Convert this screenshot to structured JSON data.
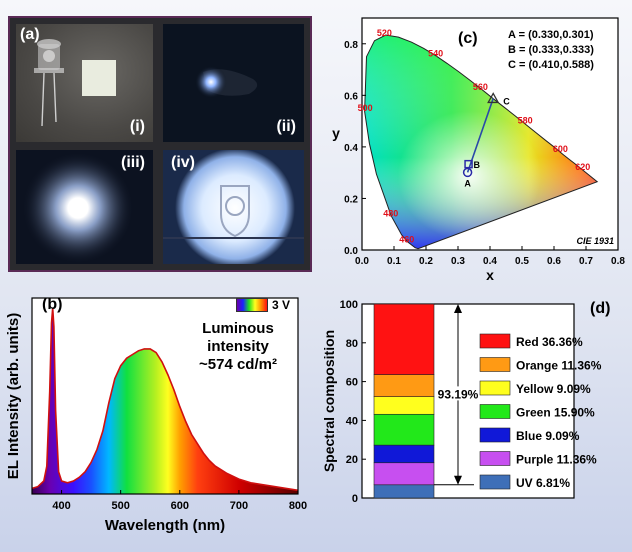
{
  "panel_a": {
    "label": "(a)",
    "subpanels": [
      {
        "label": "(i)",
        "icon": "led-and-phosphor-photo"
      },
      {
        "label": "(ii)",
        "icon": "led-off-photo"
      },
      {
        "label": "(iii)",
        "icon": "led-on-glow-photo"
      },
      {
        "label": "(iv)",
        "icon": "illuminated-emblem-photo"
      }
    ]
  },
  "chart_data": [
    {
      "type": "chromaticity",
      "panel_label": "(c)",
      "title": "CIE 1931",
      "xlabel": "x",
      "ylabel": "y",
      "xlim": [
        0.0,
        0.8
      ],
      "ylim": [
        0.0,
        0.9
      ],
      "xticks": [
        "0.0",
        "0.1",
        "0.2",
        "0.3",
        "0.4",
        "0.5",
        "0.6",
        "0.7",
        "0.8"
      ],
      "yticks": [
        "0.0",
        "0.2",
        "0.4",
        "0.6",
        "0.8"
      ],
      "wavelength_labels": [
        {
          "text": "460",
          "x": 0.14,
          "y": 0.03
        },
        {
          "text": "480",
          "x": 0.09,
          "y": 0.13
        },
        {
          "text": "500",
          "x": 0.01,
          "y": 0.54
        },
        {
          "text": "520",
          "x": 0.07,
          "y": 0.83
        },
        {
          "text": "540",
          "x": 0.23,
          "y": 0.75
        },
        {
          "text": "560",
          "x": 0.37,
          "y": 0.62
        },
        {
          "text": "580",
          "x": 0.51,
          "y": 0.49
        },
        {
          "text": "600",
          "x": 0.62,
          "y": 0.38
        },
        {
          "text": "620",
          "x": 0.69,
          "y": 0.31
        }
      ],
      "points": [
        {
          "name": "A",
          "x": 0.33,
          "y": 0.301,
          "marker": "circle"
        },
        {
          "name": "B",
          "x": 0.333,
          "y": 0.333,
          "marker": "square"
        },
        {
          "name": "C",
          "x": 0.41,
          "y": 0.588,
          "marker": "triangle"
        }
      ],
      "legend_text": [
        "A = (0.330,0.301)",
        "B = (0.333,0.333)",
        "C = (0.410,0.588)"
      ],
      "legend_position": "top-right"
    },
    {
      "type": "line",
      "panel_label": "(b)",
      "xlabel": "Wavelength (nm)",
      "ylabel": "EL Intensity (arb. units)",
      "xlim": [
        350,
        800
      ],
      "xticks": [
        "400",
        "500",
        "600",
        "700",
        "800"
      ],
      "legend": "3 V",
      "annotation": [
        "Luminous intensity",
        "~574 cd/m²"
      ],
      "x": [
        350,
        360,
        370,
        375,
        380,
        383,
        385,
        387,
        390,
        395,
        400,
        410,
        420,
        430,
        440,
        450,
        460,
        470,
        480,
        490,
        500,
        510,
        520,
        530,
        540,
        550,
        560,
        570,
        580,
        590,
        600,
        610,
        620,
        630,
        640,
        650,
        660,
        670,
        680,
        700,
        720,
        740,
        760,
        780,
        800
      ],
      "y": [
        0.03,
        0.04,
        0.07,
        0.15,
        0.55,
        0.92,
        1.0,
        0.9,
        0.45,
        0.12,
        0.07,
        0.06,
        0.07,
        0.09,
        0.12,
        0.17,
        0.24,
        0.34,
        0.49,
        0.62,
        0.69,
        0.73,
        0.75,
        0.77,
        0.78,
        0.78,
        0.76,
        0.71,
        0.64,
        0.56,
        0.47,
        0.39,
        0.32,
        0.27,
        0.22,
        0.18,
        0.15,
        0.13,
        0.11,
        0.08,
        0.06,
        0.05,
        0.04,
        0.03,
        0.02
      ]
    },
    {
      "type": "stacked_bar",
      "panel_label": "(d)",
      "ylabel": "Spectral composition",
      "ylim": [
        0,
        100
      ],
      "yticks": [
        "0",
        "20",
        "40",
        "60",
        "80",
        "100"
      ],
      "segments": [
        {
          "name": "UV 6.81%",
          "value": 6.81,
          "color": "#3e6fb8"
        },
        {
          "name": "Purple 11.36%",
          "value": 11.36,
          "color": "#c74ff0"
        },
        {
          "name": "Blue 9.09%",
          "value": 9.09,
          "color": "#1018d8"
        },
        {
          "name": "Green 15.90%",
          "value": 15.9,
          "color": "#22e81a"
        },
        {
          "name": "Yellow 9.09%",
          "value": 9.09,
          "color": "#ffff1e"
        },
        {
          "name": "Orange 11.36%",
          "value": 11.36,
          "color": "#ff9a14"
        },
        {
          "name": "Red 36.36%",
          "value": 36.36,
          "color": "#ff1212"
        }
      ],
      "annotation": "93.19%",
      "annotation_range": [
        6.81,
        100
      ]
    }
  ]
}
